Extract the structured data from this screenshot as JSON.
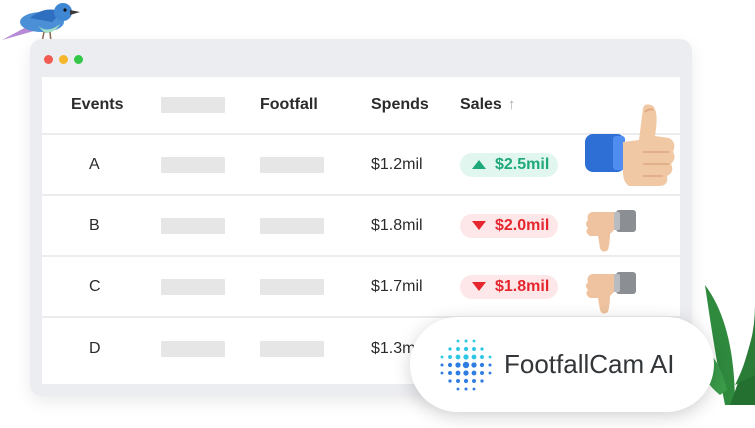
{
  "table": {
    "headers": {
      "events": "Events",
      "footfall": "Footfall",
      "spends": "Spends",
      "sales": "Sales",
      "sales_sort_icon": "arrow-up-icon"
    },
    "rows": [
      {
        "event": "A",
        "spends": "$1.2mil",
        "sales": "$2.5mil",
        "trend": "up",
        "reaction": "thumbs-up-icon"
      },
      {
        "event": "B",
        "spends": "$1.8mil",
        "sales": "$2.0mil",
        "trend": "down",
        "reaction": "thumbs-down-icon"
      },
      {
        "event": "C",
        "spends": "$1.7mil",
        "sales": "$1.8mil",
        "trend": "down",
        "reaction": "thumbs-down-icon"
      },
      {
        "event": "D",
        "spends": "$1.3mil",
        "sales": "",
        "trend": "",
        "reaction": ""
      }
    ]
  },
  "brand": {
    "name": "FootfallCam AI"
  },
  "colors": {
    "up": "#1ea97a",
    "up_bg": "#e1f6ee",
    "down": "#e5262f",
    "down_bg": "#fde7e8",
    "window_bg": "#ecedf1",
    "accent_brand": "#2f7de1"
  }
}
